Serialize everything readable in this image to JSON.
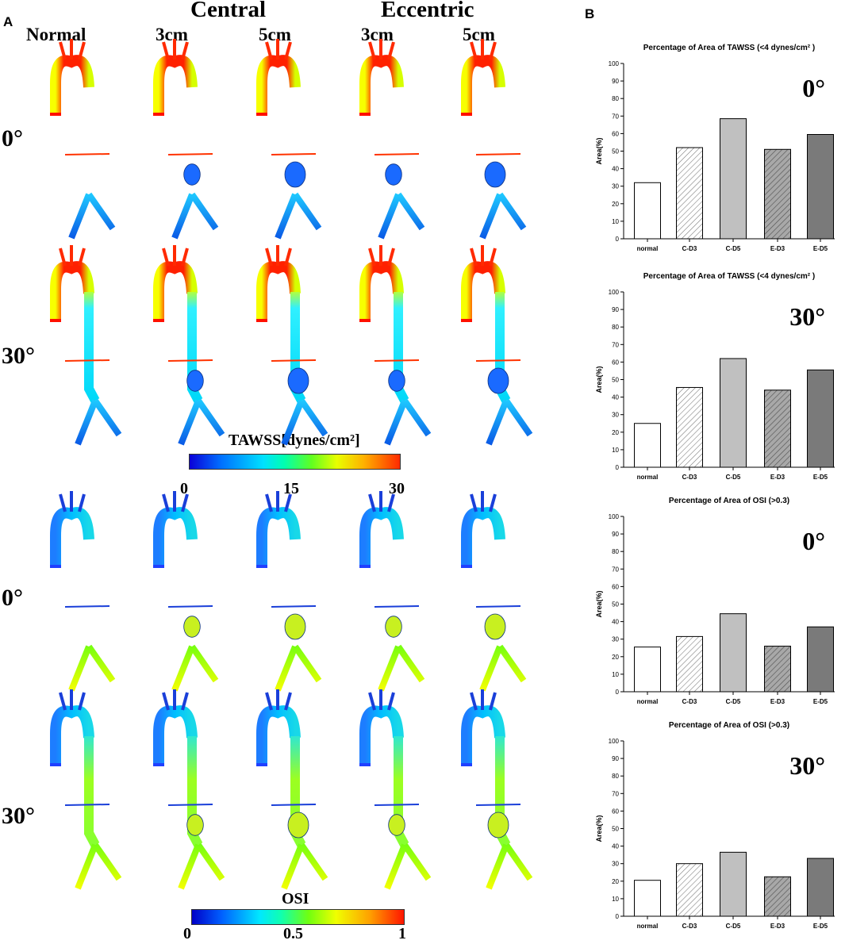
{
  "panel_a": {
    "label": "A",
    "group_headers": [
      "Central",
      "Eccentric"
    ],
    "column_headers": [
      "Normal",
      "3cm",
      "5cm",
      "3cm",
      "5cm"
    ],
    "row_labels": [
      "0°",
      "30°",
      "0°",
      "30°"
    ],
    "colorbars": [
      {
        "title": "TAWSS[dynes/cm²]",
        "ticks": [
          "0",
          "15",
          "30"
        ]
      },
      {
        "title": "OSI",
        "ticks": [
          "0",
          "0.5",
          "1"
        ]
      }
    ]
  },
  "panel_b": {
    "label": "B"
  },
  "chart_data": [
    {
      "type": "bar",
      "title": "Percentage of Area of TAWSS (<4 dynes/cm² )",
      "annotation": "0°",
      "ylabel": "Area(%)",
      "categories": [
        "normal",
        "C-D3",
        "C-D5",
        "E-D3",
        "E-D5"
      ],
      "values": [
        32,
        52,
        68.5,
        51,
        59.5
      ],
      "ylim": [
        0,
        100
      ],
      "yticks": [
        0,
        10,
        20,
        30,
        40,
        50,
        60,
        70,
        80,
        90,
        100
      ],
      "grid": false
    },
    {
      "type": "bar",
      "title": "Percentage of Area of TAWSS (<4 dynes/cm² )",
      "annotation": "30°",
      "ylabel": "Area(%)",
      "categories": [
        "normal",
        "C-D3",
        "C-D5",
        "E-D3",
        "E-D5"
      ],
      "values": [
        25,
        45.5,
        62,
        44,
        55.5
      ],
      "ylim": [
        0,
        100
      ],
      "yticks": [
        0,
        10,
        20,
        30,
        40,
        50,
        60,
        70,
        80,
        90,
        100
      ],
      "grid": false
    },
    {
      "type": "bar",
      "title": "Percentage of Area of OSI (>0.3)",
      "annotation": "0°",
      "ylabel": "Area(%)",
      "categories": [
        "normal",
        "C-D3",
        "C-D5",
        "E-D3",
        "E-D5"
      ],
      "values": [
        25.5,
        31.5,
        44.5,
        26,
        37
      ],
      "ylim": [
        0,
        100
      ],
      "yticks": [
        0,
        10,
        20,
        30,
        40,
        50,
        60,
        70,
        80,
        90,
        100
      ],
      "grid": false
    },
    {
      "type": "bar",
      "title": "Percentage of Area of OSI (>0.3)",
      "annotation": "30°",
      "ylabel": "Area(%)",
      "categories": [
        "normal",
        "C-D3",
        "C-D5",
        "E-D3",
        "E-D5"
      ],
      "values": [
        20.5,
        30,
        36.5,
        22.5,
        33
      ],
      "ylim": [
        0,
        100
      ],
      "yticks": [
        0,
        10,
        20,
        30,
        40,
        50,
        60,
        70,
        80,
        90,
        100
      ],
      "grid": false
    }
  ],
  "colors": {
    "bar_fills": [
      "#ffffff",
      "hatch-light",
      "#c0c0c0",
      "hatch-dark",
      "#7a7a7a"
    ],
    "tawss_row": "#ff3300",
    "osi_row": "#1a3fd9"
  }
}
